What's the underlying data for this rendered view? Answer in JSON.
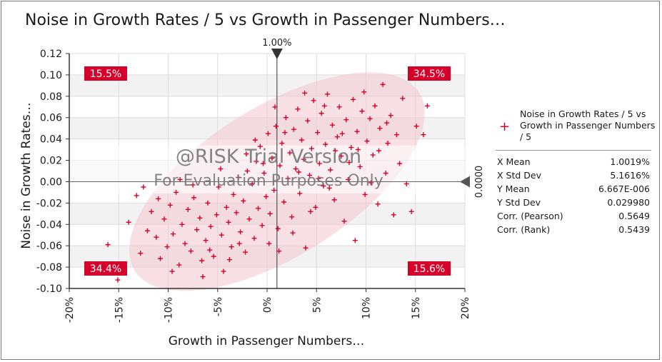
{
  "chart_data": {
    "type": "scatter",
    "title": "Noise in Growth Rates / 5 vs Growth in Passenger Numbers…",
    "xlabel": "Growth in Passenger Numbers…",
    "ylabel": "Noise in Growth Rates…",
    "xlim": [
      -0.2,
      0.2
    ],
    "ylim": [
      -0.1,
      0.12
    ],
    "x_ticks": [
      -0.2,
      -0.15,
      -0.1,
      -0.05,
      0.0,
      0.05,
      0.1,
      0.15,
      0.2
    ],
    "x_tick_labels": [
      "-20%",
      "-15%",
      "-10%",
      "-5%",
      "0%",
      "5%",
      "10%",
      "15%",
      "20%"
    ],
    "y_ticks": [
      -0.1,
      -0.08,
      -0.06,
      -0.04,
      -0.02,
      0.0,
      0.02,
      0.04,
      0.06,
      0.08,
      0.1,
      0.12
    ],
    "y_tick_labels": [
      "-0.10",
      "-0.08",
      "-0.06",
      "-0.04",
      "-0.02",
      "0.00",
      "0.02",
      "0.04",
      "0.06",
      "0.08",
      "0.10",
      "0.12"
    ],
    "crosshair_x": 0.01,
    "crosshair_x_label": "1.00%",
    "crosshair_y": 0.0,
    "crosshair_y_label": "0.0000",
    "quadrants": {
      "top_left": "15.5%",
      "top_right": "34.5%",
      "bottom_left": "34.4%",
      "bottom_right": "15.6%"
    },
    "series": [
      {
        "name": "Noise in Growth Rates / 5 vs Growth in Passenger Numbers / 5",
        "marker": "+",
        "color": "#d6002a",
        "points": [
          [
            -0.161,
            -0.059
          ],
          [
            -0.151,
            -0.092
          ],
          [
            -0.132,
            -0.013
          ],
          [
            -0.128,
            -0.067
          ],
          [
            -0.121,
            -0.046
          ],
          [
            -0.117,
            -0.028
          ],
          [
            -0.112,
            -0.052
          ],
          [
            -0.108,
            -0.072
          ],
          [
            -0.104,
            -0.035
          ],
          [
            -0.101,
            -0.061
          ],
          [
            -0.098,
            -0.022
          ],
          [
            -0.095,
            -0.049
          ],
          [
            -0.092,
            -0.01
          ],
          [
            -0.089,
            -0.078
          ],
          [
            -0.086,
            -0.04
          ],
          [
            -0.083,
            -0.058
          ],
          [
            -0.08,
            -0.026
          ],
          [
            -0.077,
            -0.065
          ],
          [
            -0.074,
            -0.015
          ],
          [
            -0.071,
            -0.045
          ],
          [
            -0.068,
            -0.034
          ],
          [
            -0.065,
            -0.089
          ],
          [
            -0.062,
            -0.055
          ],
          [
            -0.06,
            -0.02
          ],
          [
            -0.057,
            -0.042
          ],
          [
            -0.054,
            -0.07
          ],
          [
            -0.051,
            -0.031
          ],
          [
            -0.049,
            -0.005
          ],
          [
            -0.046,
            -0.05
          ],
          [
            -0.044,
            -0.084
          ],
          [
            -0.041,
            -0.024
          ],
          [
            -0.039,
            -0.038
          ],
          [
            -0.036,
            -0.061
          ],
          [
            -0.034,
            -0.012
          ],
          [
            -0.031,
            -0.029
          ],
          [
            -0.029,
            0.004
          ],
          [
            -0.027,
            -0.047
          ],
          [
            -0.024,
            -0.018
          ],
          [
            -0.022,
            -0.066
          ],
          [
            -0.02,
            0.01
          ],
          [
            -0.018,
            -0.035
          ],
          [
            -0.015,
            -0.002
          ],
          [
            -0.013,
            -0.053
          ],
          [
            -0.011,
            0.019
          ],
          [
            -0.009,
            -0.025
          ],
          [
            -0.007,
            0.033
          ],
          [
            -0.005,
            -0.041
          ],
          [
            -0.003,
            0.008
          ],
          [
            -0.001,
            -0.014
          ],
          [
            0.001,
            0.045
          ],
          [
            0.003,
            -0.03
          ],
          [
            0.005,
            0.022
          ],
          [
            0.007,
            -0.008
          ],
          [
            0.009,
            0.052
          ],
          [
            0.011,
            -0.044
          ],
          [
            0.013,
            0.015
          ],
          [
            0.015,
            0.036
          ],
          [
            0.017,
            -0.019
          ],
          [
            0.019,
            0.06
          ],
          [
            0.021,
            0.003
          ],
          [
            0.023,
            0.027
          ],
          [
            0.025,
            -0.033
          ],
          [
            0.027,
            0.049
          ],
          [
            0.029,
            0.012
          ],
          [
            0.031,
            0.068
          ],
          [
            0.033,
            -0.011
          ],
          [
            0.035,
            0.039
          ],
          [
            0.037,
            0.021
          ],
          [
            0.039,
            -0.062
          ],
          [
            0.041,
            0.057
          ],
          [
            0.043,
            0.006
          ],
          [
            0.045,
            0.031
          ],
          [
            0.047,
            0.076
          ],
          [
            0.049,
            -0.024
          ],
          [
            0.051,
            0.046
          ],
          [
            0.053,
            0.017
          ],
          [
            0.055,
            0.064
          ],
          [
            0.057,
            -0.004
          ],
          [
            0.059,
            0.035
          ],
          [
            0.061,
            0.082
          ],
          [
            0.064,
            0.011
          ],
          [
            0.066,
            0.053
          ],
          [
            0.068,
            -0.017
          ],
          [
            0.071,
            0.042
          ],
          [
            0.073,
            0.07
          ],
          [
            0.075,
            0.024
          ],
          [
            0.078,
            -0.037
          ],
          [
            0.08,
            0.058
          ],
          [
            0.082,
            0.002
          ],
          [
            0.085,
            0.032
          ],
          [
            0.087,
            0.077
          ],
          [
            0.089,
            -0.055
          ],
          [
            0.091,
            0.047
          ],
          [
            0.094,
            0.014
          ],
          [
            0.096,
            0.066
          ],
          [
            0.099,
            -0.012
          ],
          [
            0.101,
            0.038
          ],
          [
            0.104,
            0.059
          ],
          [
            0.107,
            0.025
          ],
          [
            0.109,
            0.071
          ],
          [
            0.112,
            -0.021
          ],
          [
            0.114,
            0.05
          ],
          [
            0.117,
            0.091
          ],
          [
            0.12,
            0.008
          ],
          [
            0.122,
            0.036
          ],
          [
            0.125,
            0.062
          ],
          [
            0.128,
            -0.031
          ],
          [
            0.131,
            0.044
          ],
          [
            0.134,
            0.017
          ],
          [
            0.137,
            0.078
          ],
          [
            0.141,
            -0.002
          ],
          [
            0.146,
            -0.028
          ],
          [
            0.151,
            0.052
          ],
          [
            0.158,
            0.044
          ],
          [
            0.162,
            0.071
          ],
          [
            -0.14,
            -0.038
          ],
          [
            -0.125,
            -0.005
          ],
          [
            -0.11,
            -0.016
          ],
          [
            -0.096,
            -0.084
          ],
          [
            -0.088,
            0.002
          ],
          [
            -0.075,
            -0.003
          ],
          [
            -0.066,
            -0.074
          ],
          [
            -0.058,
            -0.064
          ],
          [
            -0.047,
            0.012
          ],
          [
            -0.038,
            -0.073
          ],
          [
            -0.028,
            -0.058
          ],
          [
            -0.021,
            0.026
          ],
          [
            -0.012,
            0.039
          ],
          [
            -0.004,
            0.017
          ],
          [
            0.002,
            -0.058
          ],
          [
            0.008,
            0.07
          ],
          [
            0.012,
            -0.065
          ],
          [
            0.018,
            0.046
          ],
          [
            0.026,
            -0.048
          ],
          [
            0.032,
            0.009
          ],
          [
            0.038,
            0.083
          ],
          [
            0.044,
            -0.028
          ],
          [
            0.052,
            0.003
          ],
          [
            0.058,
            0.071
          ],
          [
            0.063,
            -0.006
          ],
          [
            0.069,
            0.029
          ],
          [
            0.076,
            0.045
          ],
          [
            0.083,
            0.018
          ],
          [
            0.092,
            0.03
          ],
          [
            0.098,
            0.084
          ],
          [
            0.105,
            -0.001
          ],
          [
            0.113,
            0.029
          ],
          [
            0.121,
            0.055
          ]
        ]
      }
    ]
  },
  "legend": {
    "label": "Noise in Growth Rates / 5 vs Growth in Passenger Numbers / 5",
    "marker": "+"
  },
  "stats": [
    {
      "label": "X Mean",
      "value": "1.0019%"
    },
    {
      "label": "X Std Dev",
      "value": "5.1616%"
    },
    {
      "label": "Y Mean",
      "value": "6.667E-006"
    },
    {
      "label": "Y Std Dev",
      "value": "0.029980"
    },
    {
      "label": "Corr. (Pearson)",
      "value": "0.5649"
    },
    {
      "label": "Corr. (Rank)",
      "value": "0.5439"
    }
  ],
  "watermark": {
    "line1": "@RISK Trial Version",
    "line2": "For Evaluation Purposes Only"
  },
  "colors": {
    "accent": "#d6002a",
    "ellipse": "#f2c6cf",
    "band_even": "#f2f2f2",
    "band_odd": "#ffffff"
  }
}
